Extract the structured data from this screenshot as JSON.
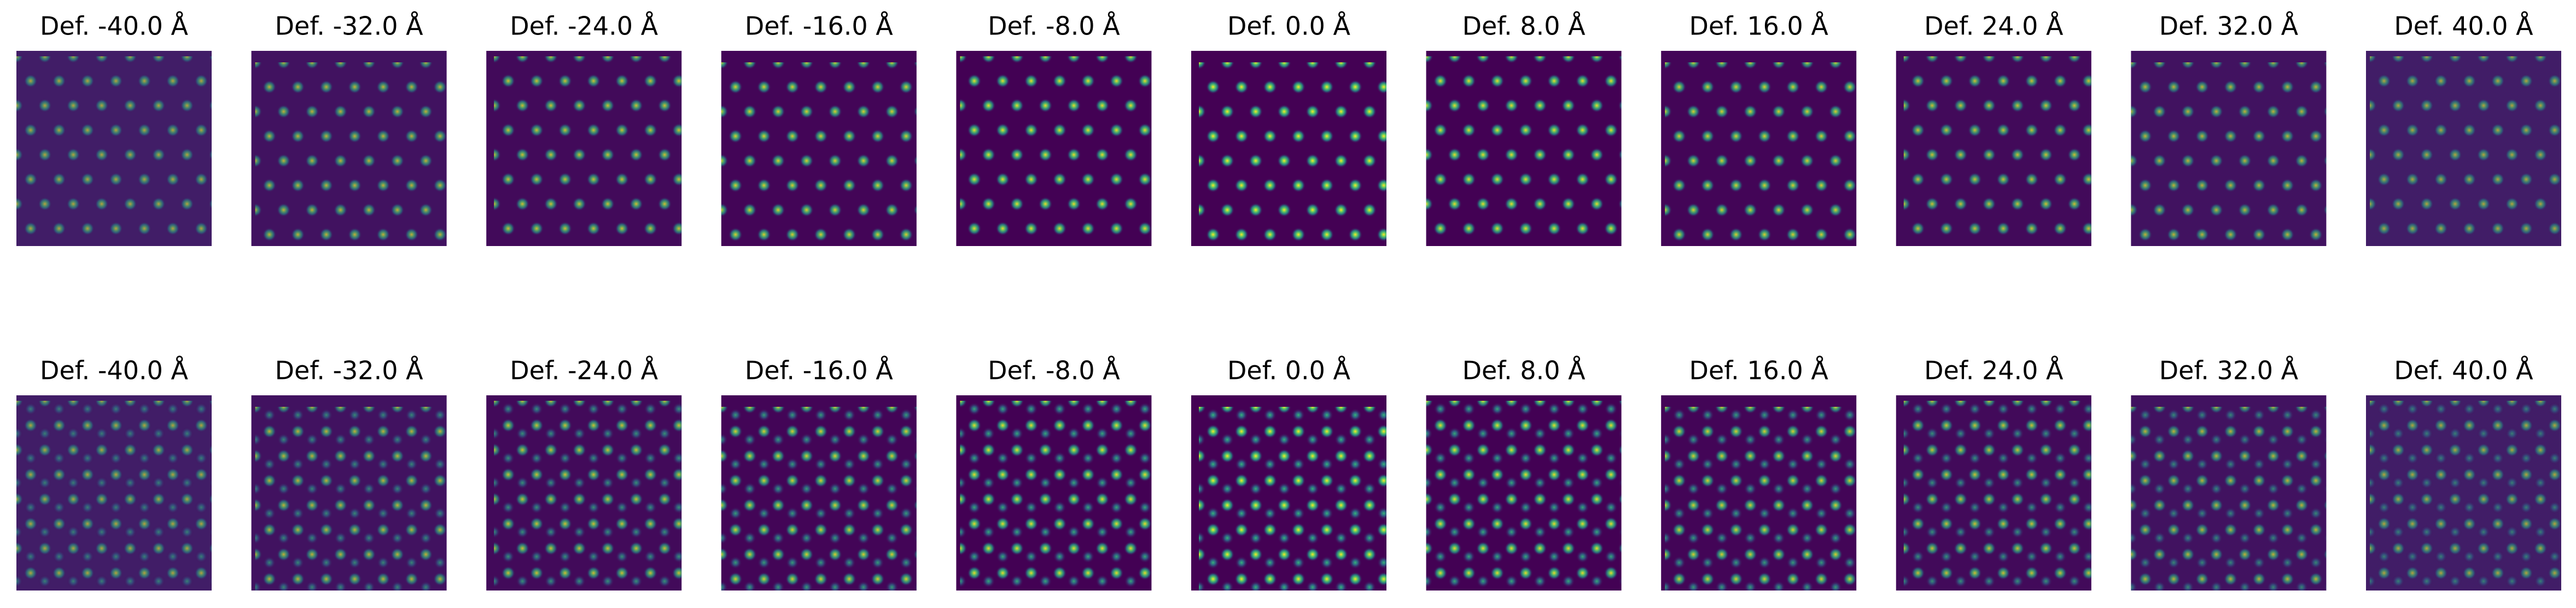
{
  "rows": [
    {
      "titles": [
        "Def. -40.0 Å",
        "Def. -32.0 Å",
        "Def. -24.0 Å",
        "Def. -16.0 Å",
        "Def. -8.0 Å",
        "Def. 0.0 Å",
        "Def. 8.0 Å",
        "Def. 16.0 Å",
        "Def. 24.0 Å",
        "Def. 32.0 Å",
        "Def. 40.0 Å"
      ]
    },
    {
      "titles": [
        "Def. -40.0 Å",
        "Def. -32.0 Å",
        "Def. -24.0 Å",
        "Def. -16.0 Å",
        "Def. -8.0 Å",
        "Def. 0.0 Å",
        "Def. 8.0 Å",
        "Def. 16.0 Å",
        "Def. 24.0 Å",
        "Def. 32.0 Å",
        "Def. 40.0 Å"
      ]
    }
  ]
}
